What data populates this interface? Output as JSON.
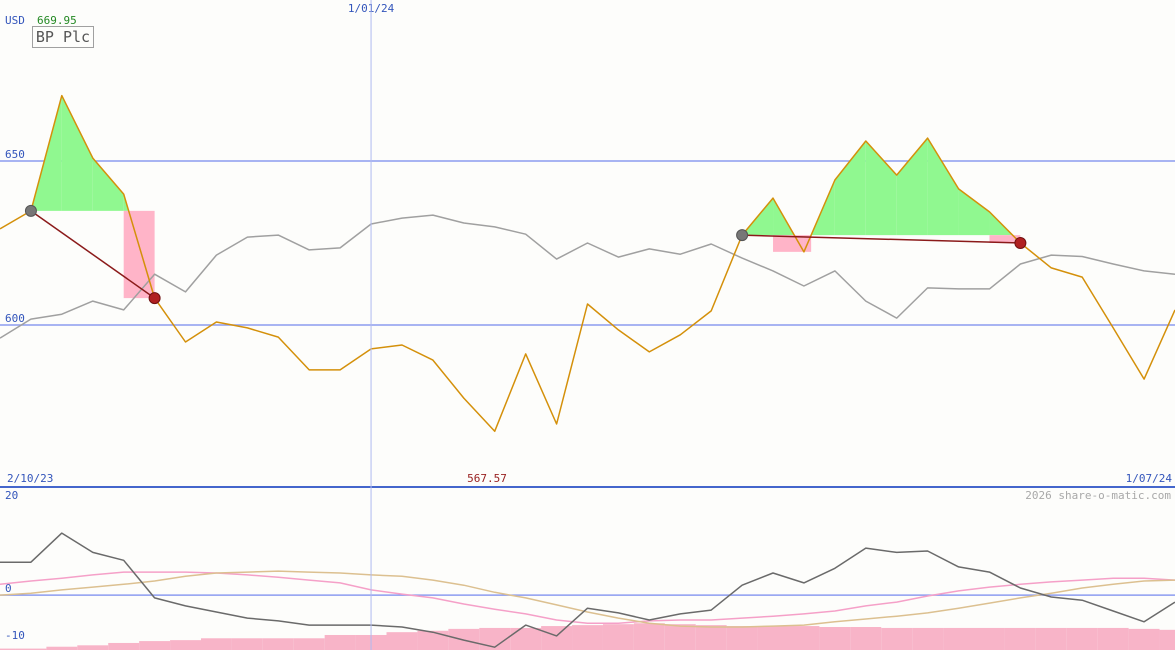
{
  "chart_data": [
    {
      "type": "line",
      "title": "BP Plc",
      "unit": "USD",
      "categories": [
        "2/10/23",
        null,
        null,
        null,
        null,
        null,
        null,
        null,
        null,
        null,
        null,
        null,
        "1/01/24",
        null,
        null,
        null,
        null,
        null,
        null,
        null,
        null,
        null,
        null,
        null,
        null,
        null,
        null,
        null,
        null,
        null,
        null,
        null,
        null,
        null,
        null,
        null,
        null,
        null,
        "1/07/24"
      ],
      "series": [
        {
          "color": "#a0a0a0",
          "values": [
            596.0,
            601.8,
            603.3,
            607.3,
            604.6,
            615.5,
            610.1,
            621.3,
            626.8,
            627.4,
            622.9,
            623.5,
            630.8,
            632.6,
            633.5,
            631.1,
            629.9,
            627.7,
            620.1,
            625.0,
            620.7,
            623.2,
            621.6,
            624.7,
            620.4,
            616.5,
            611.9,
            616.5,
            607.3,
            602.1,
            611.3,
            611.0,
            611.0,
            618.6,
            621.3,
            620.9,
            618.6,
            616.5,
            615.5
          ]
        },
        {
          "color": "#d4900a",
          "values": [
            629.3,
            634.8,
            669.95,
            650.9,
            639.9,
            608.2,
            594.8,
            600.9,
            599.1,
            596.3,
            586.3,
            586.3,
            592.7,
            593.9,
            589.3,
            577.7,
            567.57,
            591.2,
            569.8,
            606.4,
            598.5,
            591.8,
            597.0,
            604.3,
            627.4,
            638.7,
            622.3,
            644.2,
            656.1,
            645.7,
            657.0,
            641.5,
            634.5,
            625.0,
            617.4,
            614.6,
            599.1,
            583.5,
            604.6
          ]
        }
      ],
      "patterns": [
        [
          1,
          5
        ],
        [
          24,
          33
        ]
      ],
      "ylim": [
        550.6,
        699.1
      ],
      "yticks": [
        600,
        650
      ],
      "grid": true
    },
    {
      "type": "line",
      "credit": "2026 share-o-matic.com",
      "series": [
        {
          "kind": "bar",
          "color": "#f8b4c8",
          "values": [
            -11.4,
            -11.4,
            -11.0,
            -10.7,
            -10.2,
            -9.8,
            -9.6,
            -9.2,
            -9.2,
            -9.2,
            -9.2,
            -8.5,
            -8.5,
            -7.9,
            -7.6,
            -7.2,
            -7.0,
            -7.0,
            -6.6,
            -6.4,
            -6.2,
            -6.0,
            -6.2,
            -6.4,
            -6.6,
            -6.6,
            -6.6,
            -6.8,
            -6.8,
            -7.0,
            -7.0,
            -7.0,
            -7.0,
            -7.0,
            -7.0,
            -7.0,
            -7.0,
            -7.2,
            -7.4
          ]
        },
        {
          "color": "#f5a0c8",
          "values": [
            2.3,
            3.0,
            3.6,
            4.3,
            4.9,
            4.9,
            4.9,
            4.7,
            4.3,
            3.8,
            3.2,
            2.6,
            1.1,
            0.2,
            -0.6,
            -1.9,
            -3.0,
            -4.0,
            -5.3,
            -6.0,
            -6.0,
            -5.5,
            -5.3,
            -5.3,
            -4.9,
            -4.5,
            -4.0,
            -3.4,
            -2.3,
            -1.5,
            -0.2,
            0.9,
            1.7,
            2.3,
            2.8,
            3.2,
            3.6,
            3.6,
            3.2
          ]
        },
        {
          "color": "#dcc090",
          "values": [
            0,
            0.4,
            1.1,
            1.7,
            2.3,
            3.0,
            4.0,
            4.7,
            4.9,
            5.1,
            4.9,
            4.7,
            4.3,
            4.0,
            3.2,
            2.1,
            0.6,
            -0.6,
            -2.1,
            -3.6,
            -4.9,
            -6.0,
            -6.6,
            -6.8,
            -6.8,
            -6.6,
            -6.4,
            -5.7,
            -5.1,
            -4.5,
            -3.8,
            -2.8,
            -1.7,
            -0.6,
            0.4,
            1.5,
            2.3,
            3.0,
            3.2
          ]
        },
        {
          "color": "#6a6a6a",
          "values": [
            7.0,
            7.0,
            13.2,
            9.1,
            7.4,
            -0.6,
            -2.3,
            -3.6,
            -4.9,
            -5.5,
            -6.4,
            -6.4,
            -6.4,
            -6.8,
            -7.9,
            -9.6,
            -11.1,
            -6.4,
            -8.7,
            -2.8,
            -3.8,
            -5.3,
            -4.0,
            -3.2,
            2.1,
            4.7,
            2.6,
            5.7,
            10.0,
            9.1,
            9.4,
            6.0,
            4.9,
            1.5,
            -0.4,
            -1.1,
            -3.4,
            -5.7,
            -1.5
          ]
        }
      ],
      "ylim": [
        -11.7,
        22.6
      ],
      "yticks": [
        20,
        0,
        -10
      ],
      "grid": false,
      "zero_line": true
    }
  ]
}
